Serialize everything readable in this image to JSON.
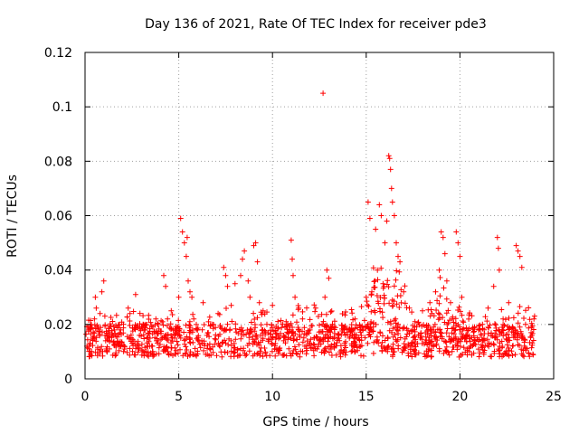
{
  "chart_data": {
    "type": "scatter",
    "title": "Day 136 of 2021, Rate Of TEC Index for receiver pde3",
    "xlabel": "GPS time / hours",
    "ylabel": "ROTI / TECUs",
    "xlim": [
      0,
      25
    ],
    "ylim": [
      0,
      0.12
    ],
    "xticks": [
      0,
      5,
      10,
      15,
      20,
      25
    ],
    "xtick_labels": [
      "0",
      "5",
      "10",
      "15",
      "20",
      "25"
    ],
    "yticks": [
      0,
      0.02,
      0.04,
      0.06,
      0.08,
      0.1,
      0.12
    ],
    "ytick_labels": [
      "0",
      "0.02",
      "0.04",
      "0.06",
      "0.08",
      "0.1",
      "0.12"
    ],
    "grid": true,
    "marker": "+",
    "color": "#ff0000",
    "series": [
      {
        "name": "ROTI",
        "description_baseline": "dense band of points ~0.008–0.022 across 0–24 h",
        "points": [
          [
            0.1,
            0.012
          ],
          [
            0.2,
            0.018
          ],
          [
            0.3,
            0.009
          ],
          [
            0.4,
            0.015
          ],
          [
            0.5,
            0.022
          ],
          [
            0.55,
            0.03
          ],
          [
            0.6,
            0.026
          ],
          [
            0.7,
            0.019
          ],
          [
            0.8,
            0.024
          ],
          [
            0.9,
            0.032
          ],
          [
            1.0,
            0.036
          ],
          [
            1.1,
            0.014
          ],
          [
            1.3,
            0.011
          ],
          [
            1.5,
            0.016
          ],
          [
            1.7,
            0.013
          ],
          [
            1.9,
            0.018
          ],
          [
            2.1,
            0.012
          ],
          [
            2.3,
            0.026
          ],
          [
            2.4,
            0.024
          ],
          [
            2.7,
            0.031
          ],
          [
            2.9,
            0.016
          ],
          [
            3.1,
            0.02
          ],
          [
            3.3,
            0.015
          ],
          [
            3.6,
            0.012
          ],
          [
            3.9,
            0.014
          ],
          [
            4.2,
            0.038
          ],
          [
            4.3,
            0.034
          ],
          [
            4.4,
            0.022
          ],
          [
            4.6,
            0.025
          ],
          [
            4.8,
            0.018
          ],
          [
            5.0,
            0.03
          ],
          [
            5.1,
            0.059
          ],
          [
            5.2,
            0.054
          ],
          [
            5.3,
            0.05
          ],
          [
            5.4,
            0.045
          ],
          [
            5.45,
            0.052
          ],
          [
            5.5,
            0.036
          ],
          [
            5.6,
            0.032
          ],
          [
            5.7,
            0.03
          ],
          [
            5.8,
            0.022
          ],
          [
            6.0,
            0.018
          ],
          [
            6.3,
            0.028
          ],
          [
            6.5,
            0.016
          ],
          [
            6.8,
            0.02
          ],
          [
            7.1,
            0.024
          ],
          [
            7.4,
            0.041
          ],
          [
            7.5,
            0.038
          ],
          [
            7.6,
            0.034
          ],
          [
            7.8,
            0.027
          ],
          [
            8.0,
            0.035
          ],
          [
            8.3,
            0.038
          ],
          [
            8.4,
            0.044
          ],
          [
            8.5,
            0.047
          ],
          [
            8.7,
            0.036
          ],
          [
            8.8,
            0.03
          ],
          [
            9.0,
            0.049
          ],
          [
            9.1,
            0.05
          ],
          [
            9.2,
            0.043
          ],
          [
            9.3,
            0.028
          ],
          [
            9.5,
            0.025
          ],
          [
            9.7,
            0.02
          ],
          [
            10.0,
            0.027
          ],
          [
            10.3,
            0.016
          ],
          [
            10.6,
            0.014
          ],
          [
            10.8,
            0.02
          ],
          [
            11.0,
            0.051
          ],
          [
            11.05,
            0.044
          ],
          [
            11.1,
            0.038
          ],
          [
            11.2,
            0.03
          ],
          [
            11.4,
            0.026
          ],
          [
            11.6,
            0.022
          ],
          [
            12.0,
            0.018
          ],
          [
            12.3,
            0.026
          ],
          [
            12.5,
            0.014
          ],
          [
            12.7,
            0.105
          ],
          [
            12.8,
            0.03
          ],
          [
            12.9,
            0.04
          ],
          [
            13.0,
            0.037
          ],
          [
            13.2,
            0.02
          ],
          [
            13.5,
            0.016
          ],
          [
            13.8,
            0.019
          ],
          [
            14.1,
            0.015
          ],
          [
            14.4,
            0.022
          ],
          [
            14.7,
            0.018
          ],
          [
            15.0,
            0.03
          ],
          [
            15.1,
            0.065
          ],
          [
            15.2,
            0.059
          ],
          [
            15.3,
            0.032
          ],
          [
            15.5,
            0.055
          ],
          [
            15.6,
            0.04
          ],
          [
            15.7,
            0.064
          ],
          [
            15.8,
            0.06
          ],
          [
            15.9,
            0.035
          ],
          [
            16.0,
            0.05
          ],
          [
            16.1,
            0.058
          ],
          [
            16.2,
            0.082
          ],
          [
            16.25,
            0.081
          ],
          [
            16.3,
            0.077
          ],
          [
            16.35,
            0.07
          ],
          [
            16.4,
            0.065
          ],
          [
            16.5,
            0.06
          ],
          [
            16.6,
            0.05
          ],
          [
            16.7,
            0.045
          ],
          [
            16.8,
            0.043
          ],
          [
            17.0,
            0.032
          ],
          [
            17.3,
            0.026
          ],
          [
            17.6,
            0.021
          ],
          [
            18.0,
            0.025
          ],
          [
            18.4,
            0.028
          ],
          [
            18.7,
            0.032
          ],
          [
            18.9,
            0.04
          ],
          [
            19.0,
            0.054
          ],
          [
            19.1,
            0.052
          ],
          [
            19.2,
            0.046
          ],
          [
            19.3,
            0.036
          ],
          [
            19.5,
            0.028
          ],
          [
            19.8,
            0.054
          ],
          [
            19.9,
            0.05
          ],
          [
            20.0,
            0.045
          ],
          [
            20.1,
            0.03
          ],
          [
            20.4,
            0.016
          ],
          [
            20.8,
            0.014
          ],
          [
            21.2,
            0.02
          ],
          [
            21.5,
            0.026
          ],
          [
            21.8,
            0.034
          ],
          [
            22.0,
            0.052
          ],
          [
            22.05,
            0.048
          ],
          [
            22.1,
            0.04
          ],
          [
            22.3,
            0.022
          ],
          [
            22.6,
            0.028
          ],
          [
            23.0,
            0.049
          ],
          [
            23.1,
            0.047
          ],
          [
            23.2,
            0.045
          ],
          [
            23.3,
            0.041
          ],
          [
            23.5,
            0.02
          ],
          [
            23.8,
            0.017
          ],
          [
            23.95,
            0.022
          ]
        ]
      }
    ]
  }
}
